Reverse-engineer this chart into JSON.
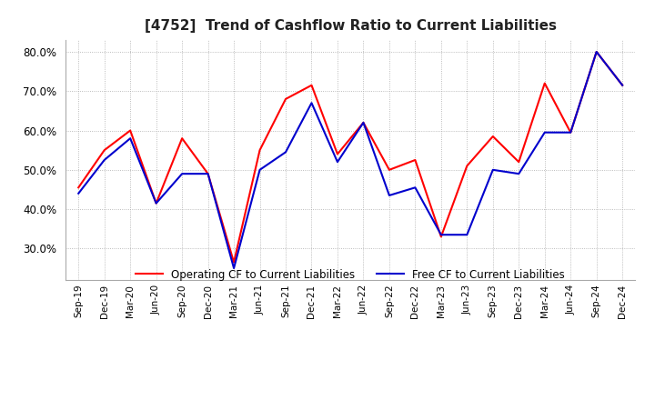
{
  "title": "[4752]  Trend of Cashflow Ratio to Current Liabilities",
  "title_fontsize": 11,
  "x_labels": [
    "Sep-19",
    "Dec-19",
    "Mar-20",
    "Jun-20",
    "Sep-20",
    "Dec-20",
    "Mar-21",
    "Jun-21",
    "Sep-21",
    "Dec-21",
    "Mar-22",
    "Jun-22",
    "Sep-22",
    "Dec-22",
    "Mar-23",
    "Jun-23",
    "Sep-23",
    "Dec-23",
    "Mar-24",
    "Jun-24",
    "Sep-24",
    "Dec-24"
  ],
  "operating_cf": [
    0.455,
    0.55,
    0.6,
    0.415,
    0.58,
    0.49,
    0.265,
    0.55,
    0.68,
    0.715,
    0.54,
    0.62,
    0.5,
    0.525,
    0.33,
    0.51,
    0.585,
    0.52,
    0.72,
    0.595,
    0.8,
    0.715
  ],
  "free_cf": [
    0.44,
    0.525,
    0.58,
    0.415,
    0.49,
    0.49,
    0.25,
    0.5,
    0.545,
    0.67,
    0.52,
    0.62,
    0.435,
    0.455,
    0.335,
    0.335,
    0.5,
    0.49,
    0.595,
    0.595,
    0.8,
    0.715
  ],
  "operating_color": "#ff0000",
  "free_color": "#0000cd",
  "ylim_min": 0.22,
  "ylim_max": 0.83,
  "yticks": [
    0.3,
    0.4,
    0.5,
    0.6,
    0.7,
    0.8
  ],
  "background_color": "#ffffff",
  "grid_color": "#aaaaaa",
  "legend_op": "Operating CF to Current Liabilities",
  "legend_free": "Free CF to Current Liabilities"
}
